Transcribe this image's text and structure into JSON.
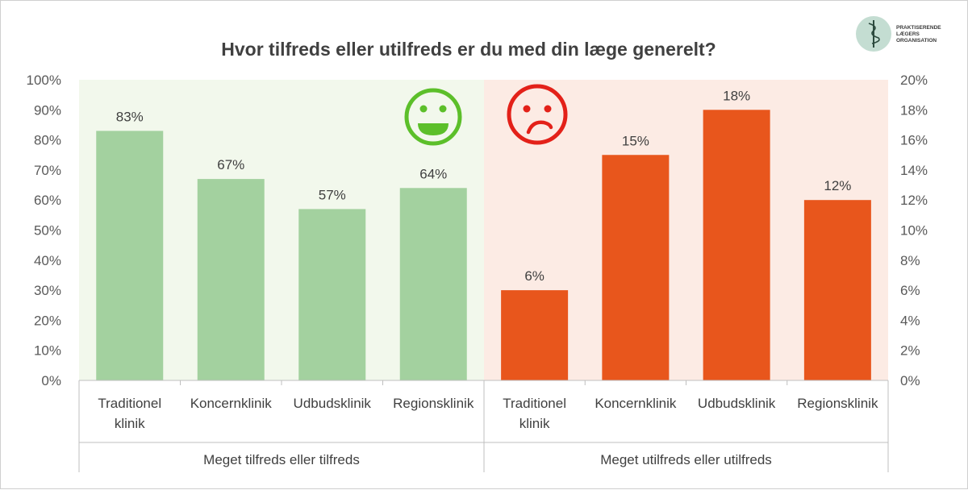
{
  "colors": {
    "green_bar": "#a3d19f",
    "green_bg": "#f2f8ec",
    "orange_bar": "#e8561c",
    "orange_bg": "#fcebe4",
    "axis": "#bfbfbf",
    "smiley_green": "#5cbf2a",
    "smiley_red": "#e32119",
    "logo_circle": "#c4ddd2"
  },
  "logo": {
    "lines": [
      "PRAKTISERENDE",
      "LÆGERS",
      "ORGANISATION"
    ],
    "icon": "staff-of-asclepius-icon"
  },
  "icons": {
    "happy": "happy-smiley-icon",
    "sad": "sad-smiley-icon"
  },
  "chart_data": {
    "type": "bar",
    "title": "Hvor tilfreds eller utilfreds er du med din læge generelt?",
    "xlabel": "",
    "ylabel": "",
    "grid": false,
    "legend": "none",
    "axes": {
      "left": {
        "ylim": [
          0,
          100
        ],
        "ticks": [
          0,
          10,
          20,
          30,
          40,
          50,
          60,
          70,
          80,
          90,
          100
        ],
        "tick_labels": [
          "0%",
          "10%",
          "20%",
          "30%",
          "40%",
          "50%",
          "60%",
          "70%",
          "80%",
          "90%",
          "100%"
        ]
      },
      "right": {
        "ylim": [
          0,
          20
        ],
        "ticks": [
          0,
          2,
          4,
          6,
          8,
          10,
          12,
          14,
          16,
          18,
          20
        ],
        "tick_labels": [
          "0%",
          "2%",
          "4%",
          "6%",
          "8%",
          "10%",
          "12%",
          "14%",
          "16%",
          "18%",
          "20%"
        ]
      }
    },
    "groups": [
      {
        "label": "Meget tilfreds eller tilfreds",
        "axis": "left",
        "categories": [
          [
            "Traditionel",
            "klinik"
          ],
          [
            "Koncernklinik"
          ],
          [
            "Udbudsklinik"
          ],
          [
            "Regionsklinik"
          ]
        ],
        "values": [
          83,
          67,
          57,
          64
        ],
        "value_labels": [
          "83%",
          "67%",
          "57%",
          "64%"
        ]
      },
      {
        "label": "Meget utilfreds eller utilfreds",
        "axis": "right",
        "categories": [
          [
            "Traditionel",
            "klinik"
          ],
          [
            "Koncernklinik"
          ],
          [
            "Udbudsklinik"
          ],
          [
            "Regionsklinik"
          ]
        ],
        "values": [
          6,
          15,
          18,
          12
        ],
        "value_labels": [
          "6%",
          "15%",
          "18%",
          "12%"
        ]
      }
    ]
  }
}
